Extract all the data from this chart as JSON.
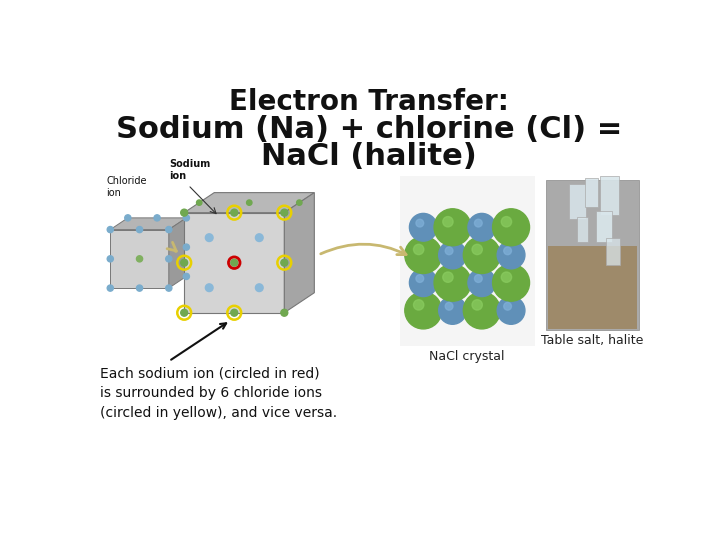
{
  "title": "Electron Transfer:",
  "subtitle_line1": "Sodium (Na) + chlorine (Cl) =",
  "subtitle_line2": "NaCl (halite)",
  "caption_nacl": "NaCl crystal",
  "caption_salt": "Table salt, halite",
  "annotation": "Each sodium ion (circled in red)\nis surrounded by 6 chloride ions\n(circled in yellow), and vice versa.",
  "label_chloride": "Chloride\nion",
  "label_sodium": "Sodium\nion",
  "background_color": "#ffffff",
  "title_fontsize": 20,
  "subtitle_fontsize": 22,
  "annotation_fontsize": 10,
  "caption_fontsize": 9,
  "label_fontsize": 7
}
